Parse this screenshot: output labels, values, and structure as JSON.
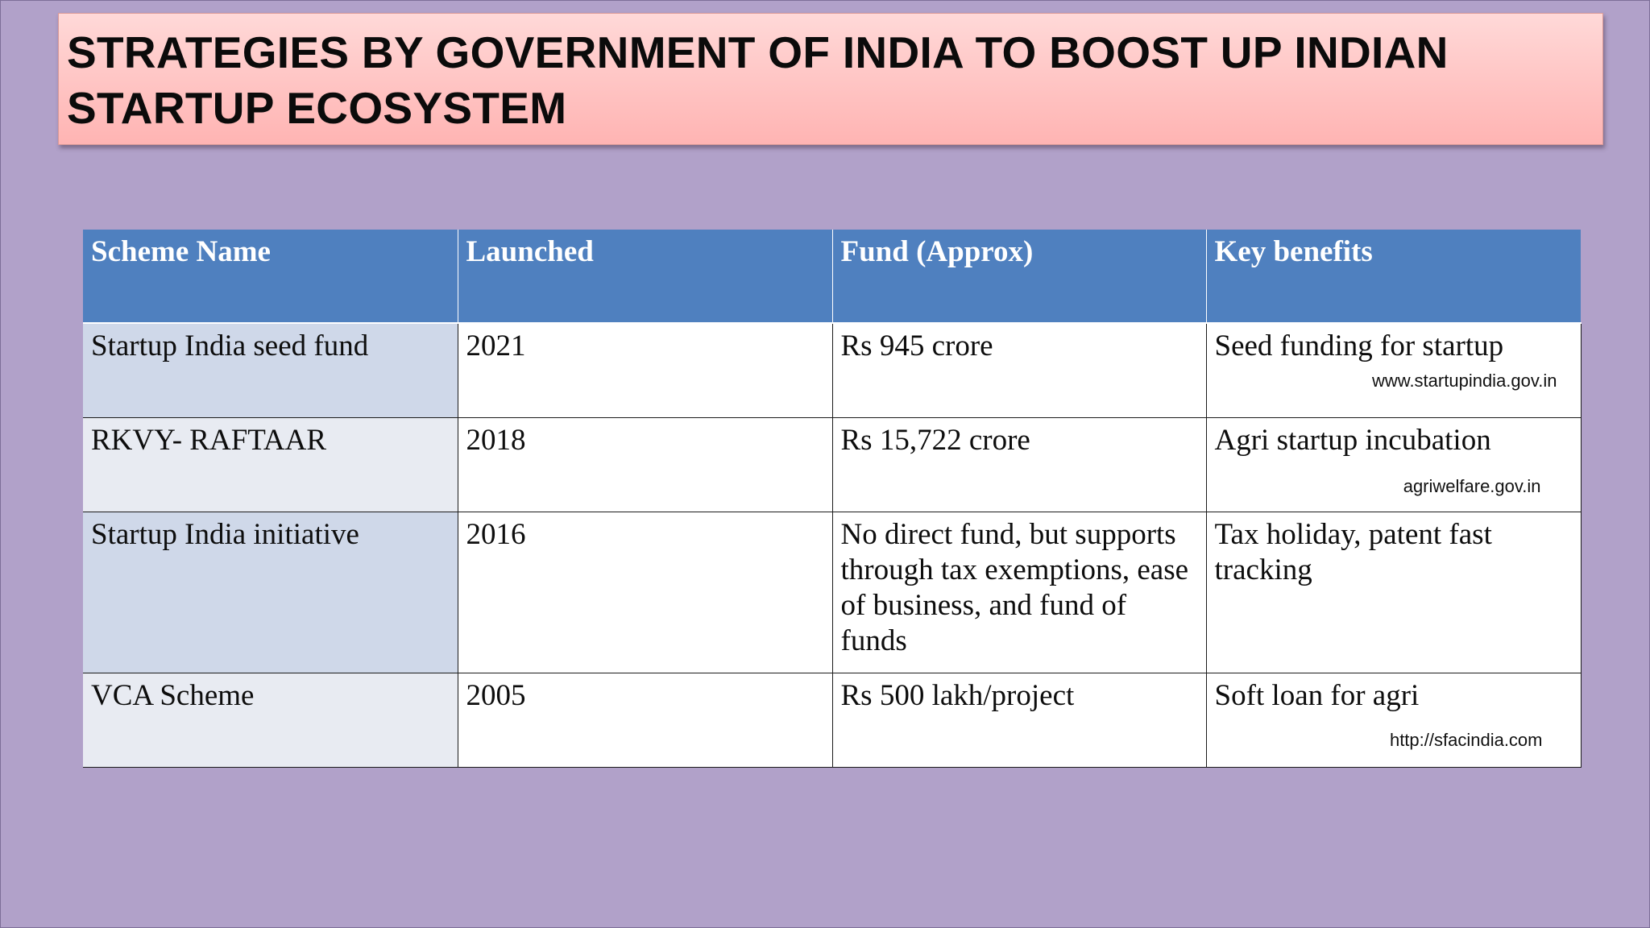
{
  "title": "STRATEGIES BY GOVERNMENT OF INDIA TO BOOST UP INDIAN STARTUP ECOSYSTEM",
  "table": {
    "headers": [
      "Scheme Name",
      "Launched",
      "Fund (Approx)",
      "Key benefits"
    ],
    "rows": [
      {
        "scheme": "Startup India seed fund",
        "launched": "2021",
        "fund": "Rs 945 crore",
        "benefit": "Seed funding for startup",
        "source": "www.startupindia.gov.in"
      },
      {
        "scheme": "RKVY- RAFTAAR",
        "launched": "2018",
        "fund": "Rs 15,722 crore",
        "benefit": "Agri startup incubation",
        "source": "agriwelfare.gov.in"
      },
      {
        "scheme": "Startup India initiative",
        "launched": "2016",
        "fund": "No direct fund, but supports through tax exemptions, ease of business, and fund of funds",
        "benefit": "Tax holiday, patent fast tracking",
        "source": ""
      },
      {
        "scheme": "VCA Scheme",
        "launched": "2005",
        "fund": "Rs 500 lakh/project",
        "benefit": "Soft loan for agri",
        "source": "http://sfacindia.com"
      }
    ]
  },
  "colors": {
    "background": "#b1a1c9",
    "title_box": "#ffc4c3",
    "header_fill": "#4f80bf",
    "first_col_band_1": "#cfd8e9",
    "first_col_band_2": "#e8ebf2"
  }
}
